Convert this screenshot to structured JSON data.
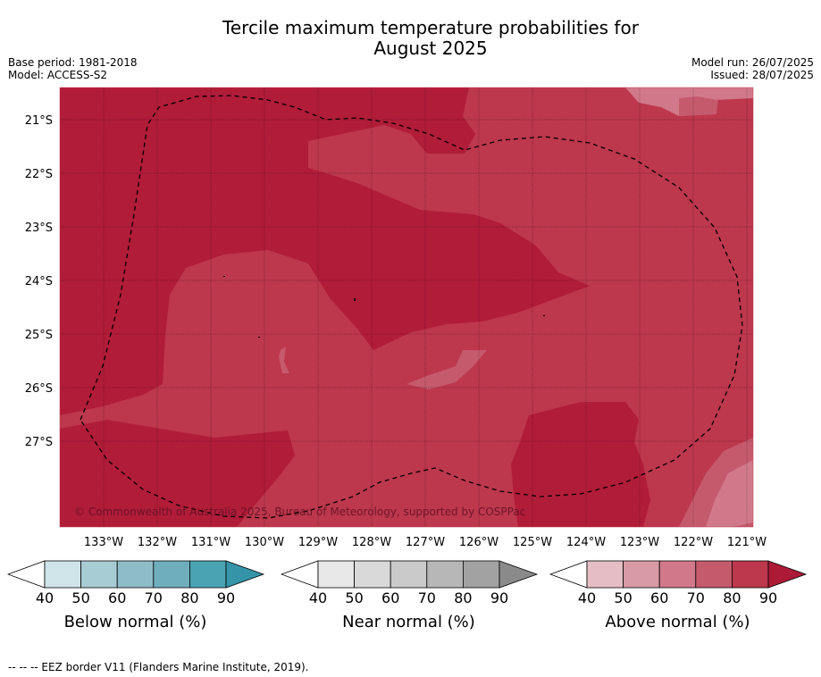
{
  "title_line1": "Tercile maximum temperature probabilities for",
  "title_line2": "August 2025",
  "meta": {
    "base_period": "Base period: 1981-2018",
    "model": "Model: ACCESS-S2",
    "model_run": "Model run: 26/07/2025",
    "issued": "Issued: 28/07/2025"
  },
  "map": {
    "lat_labels": [
      "21°S",
      "22°S",
      "23°S",
      "24°S",
      "25°S",
      "26°S",
      "27°S"
    ],
    "lon_labels": [
      "133°W",
      "132°W",
      "131°W",
      "130°W",
      "129°W",
      "128°W",
      "127°W",
      "126°W",
      "125°W",
      "124°W",
      "123°W",
      "122°W",
      "121°W"
    ],
    "copyright": "© Commonwealth of Australia 2025, Bureau of Meteorology, supported by COSPPac",
    "colors": {
      "above_70": "#bd374d",
      "above_80": "#b11c39",
      "above_60": "#d1798a",
      "above_50": "#d89aa4"
    }
  },
  "colorbars": [
    {
      "label": "Below normal (%)",
      "ticks": [
        "40",
        "50",
        "60",
        "70",
        "80",
        "90"
      ],
      "colors": [
        "#cee4e8",
        "#a8ccd3",
        "#8ebcc7",
        "#6faebd",
        "#4aa3b2",
        "#3594a8"
      ]
    },
    {
      "label": "Near normal (%)",
      "ticks": [
        "40",
        "50",
        "60",
        "70",
        "80",
        "90"
      ],
      "colors": [
        "#e7e7e7",
        "#d9d9d9",
        "#cacaca",
        "#b7b7b7",
        "#a2a2a2",
        "#8a8a8a"
      ]
    },
    {
      "label": "Above normal (%)",
      "ticks": [
        "40",
        "50",
        "60",
        "70",
        "80",
        "90"
      ],
      "colors": [
        "#e4bec4",
        "#d89aa4",
        "#d1798a",
        "#c55a6d",
        "#bd374d",
        "#ac1a37"
      ]
    }
  ],
  "footer": "--  --  -- EEZ border V11 (Flanders Marine Institute, 2019)."
}
